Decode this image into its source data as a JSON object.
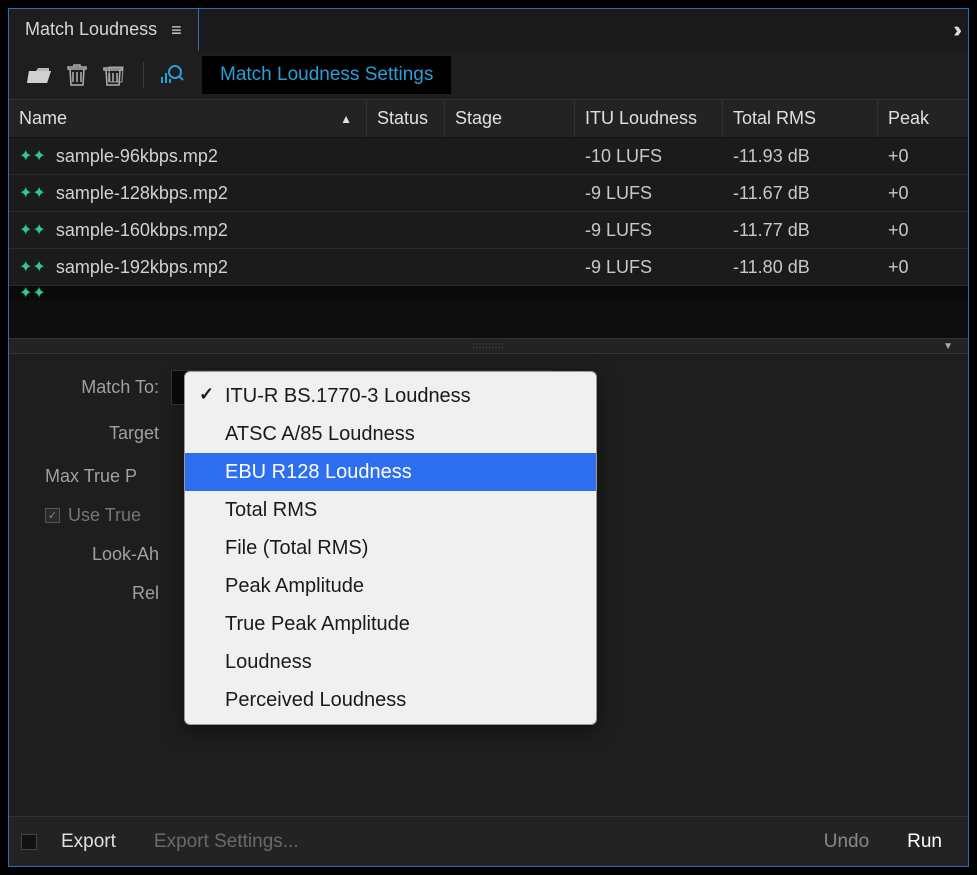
{
  "panel": {
    "tab_title": "Match Loudness",
    "settings_button": "Match Loudness Settings"
  },
  "colors": {
    "accent": "#2a9fd6",
    "border_focus": "#2a6fbc",
    "background": "#1e1e1e",
    "wave_icon": "#2fc98f",
    "dropdown_highlight": "#2e6ff0"
  },
  "table": {
    "columns": {
      "name": "Name",
      "status": "Status",
      "stage": "Stage",
      "itu_loudness": "ITU Loudness",
      "total_rms": "Total RMS",
      "peak": "Peak"
    },
    "rows": [
      {
        "name": "sample-96kbps.mp2",
        "status": "",
        "stage": "",
        "loudness": "-10 LUFS",
        "rms": "-11.93 dB",
        "peak": "+0"
      },
      {
        "name": "sample-128kbps.mp2",
        "status": "",
        "stage": "",
        "loudness": "-9 LUFS",
        "rms": "-11.67 dB",
        "peak": "+0"
      },
      {
        "name": "sample-160kbps.mp2",
        "status": "",
        "stage": "",
        "loudness": "-9 LUFS",
        "rms": "-11.77 dB",
        "peak": "+0"
      },
      {
        "name": "sample-192kbps.mp2",
        "status": "",
        "stage": "",
        "loudness": "-9 LUFS",
        "rms": "-11.80 dB",
        "peak": "+0"
      }
    ]
  },
  "settings": {
    "match_to_label": "Match To:",
    "match_to_value": "ITU-R BS.1770-3 Loudness",
    "target_label": "Target",
    "max_true_peak_label": "Max True P",
    "use_true_peak_label": "Use True",
    "look_ahead_label": "Look-Ah",
    "release_label": "Rel",
    "dropdown_options": [
      "ITU-R BS.1770-3 Loudness",
      "ATSC A/85 Loudness",
      "EBU R128 Loudness",
      "Total RMS",
      "File (Total RMS)",
      "Peak Amplitude",
      "True Peak Amplitude",
      "Loudness",
      "Perceived Loudness"
    ],
    "dropdown_selected_index": 0,
    "dropdown_highlighted_index": 2
  },
  "bottom": {
    "export": "Export",
    "export_settings": "Export Settings...",
    "undo": "Undo",
    "run": "Run"
  }
}
